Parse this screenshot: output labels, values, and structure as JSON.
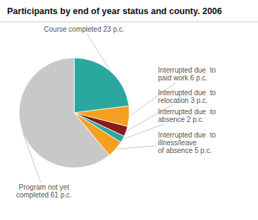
{
  "chart_data": {
    "type": "pie",
    "title": "Participants by end of year status and county. 2006",
    "categories": [
      "Course completed 23 p.c.",
      "Interrupted due  to\npaid work 6 p.c.",
      "Interrupted due  to\nrelocation 3 p.c.",
      "Interrupted due  to\nabsence 2 p.c.",
      "Interrupted due  to\nillness/leave\nof absence 5 p.c.",
      "Program not yet\ncompleted 61 p.c."
    ],
    "values": [
      23,
      6,
      3,
      2,
      5,
      61
    ],
    "colors": [
      "#2aa8a0",
      "#f5a020",
      "#8b1a1a",
      "#2aa8a0",
      "#f5a020",
      "#c8c8c8"
    ]
  }
}
